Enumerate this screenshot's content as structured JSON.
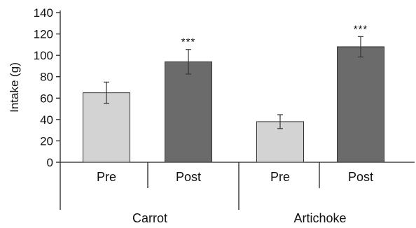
{
  "chart_data": {
    "type": "bar",
    "ylabel": "Intake (g)",
    "ylim": [
      0,
      140
    ],
    "yticks": [
      0,
      20,
      40,
      60,
      80,
      100,
      120,
      140
    ],
    "grid": false,
    "groups": [
      {
        "name": "Carrot",
        "bars": [
          {
            "category": "Pre",
            "value": 65,
            "error": 10,
            "significance": ""
          },
          {
            "category": "Post",
            "value": 94,
            "error": 11.5,
            "significance": "***"
          }
        ]
      },
      {
        "name": "Artichoke",
        "bars": [
          {
            "category": "Pre",
            "value": 38,
            "error": 6.5,
            "significance": ""
          },
          {
            "category": "Post",
            "value": 108,
            "error": 9.5,
            "significance": "***"
          }
        ]
      }
    ],
    "colors": {
      "Pre": "#d3d3d3",
      "Post": "#6b6b6b",
      "outline": "#333333"
    }
  }
}
